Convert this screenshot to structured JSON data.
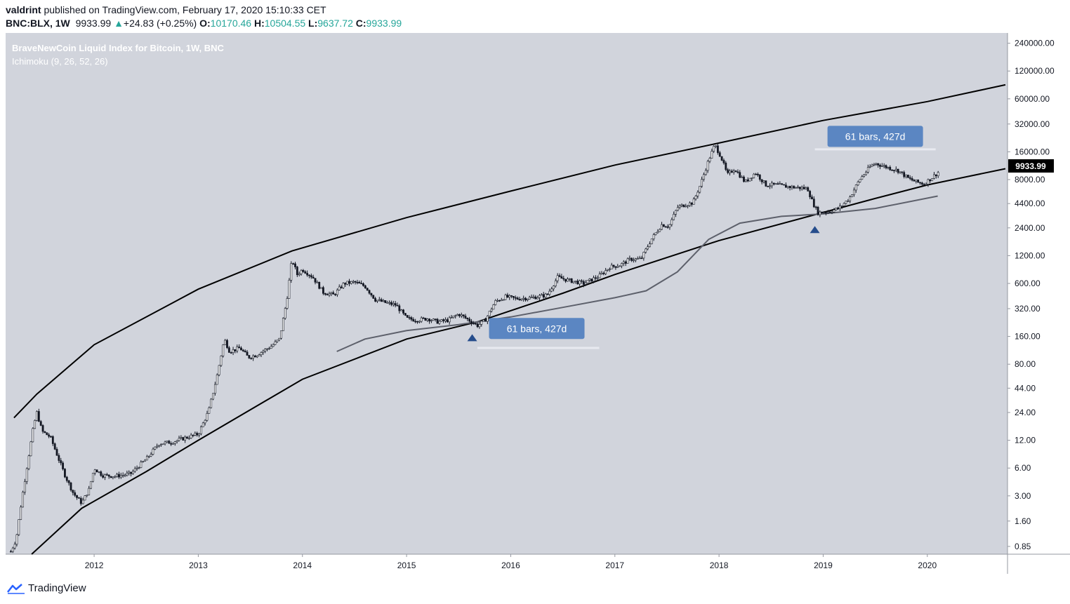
{
  "header": {
    "author": "valdrint",
    "published_text": "published on TradingView.com, February 17, 2020 15:10:33 CET",
    "symbol": "BNC:BLX, 1W",
    "last": "9933.99",
    "change_arrow": "▲",
    "change": "+24.83 (+0.25%)",
    "o_label": "O:",
    "o_value": "10170.46",
    "h_label": "H:",
    "h_value": "10504.55",
    "l_label": "L:",
    "l_value": "9637.72",
    "c_label": "C:",
    "c_value": "9933.99"
  },
  "footer": {
    "brand": "TradingView"
  },
  "chart_data": {
    "type": "candlestick",
    "title": "BraveNewCoin Liquid Index for Bitcoin, 1W, BNC",
    "subtitle": "Ichimoku (9, 26, 52, 26)",
    "y_scale": "log",
    "ylim": [
      0.7,
      310000
    ],
    "xlim": [
      2011.15,
      2020.77
    ],
    "y_ticks": [
      "240000.00",
      "120000.00",
      "60000.00",
      "32000.00",
      "16000.00",
      "8000.00",
      "4400.00",
      "2400.00",
      "1200.00",
      "600.00",
      "320.00",
      "160.00",
      "80.00",
      "44.00",
      "24.00",
      "12.00",
      "6.00",
      "3.00",
      "1.60",
      "0.85"
    ],
    "x_ticks": [
      "2012",
      "2013",
      "2014",
      "2015",
      "2016",
      "2017",
      "2018",
      "2019",
      "2020"
    ],
    "last_price_label": "9933.99",
    "colors": {
      "background": "#d1d4dc",
      "candle": "#131722",
      "baseline": "#5d606b",
      "label_bg": "#5b86c2",
      "marker": "#264d8c",
      "price_tag": "#000000"
    },
    "price_path": [
      {
        "t": 2011.2,
        "v": 0.75
      },
      {
        "t": 2011.25,
        "v": 1.0
      },
      {
        "t": 2011.31,
        "v": 3.0
      },
      {
        "t": 2011.37,
        "v": 8.0
      },
      {
        "t": 2011.42,
        "v": 17.5
      },
      {
        "t": 2011.45,
        "v": 24.0
      },
      {
        "t": 2011.5,
        "v": 15.0
      },
      {
        "t": 2011.58,
        "v": 13.0
      },
      {
        "t": 2011.65,
        "v": 8.0
      },
      {
        "t": 2011.72,
        "v": 5.0
      },
      {
        "t": 2011.8,
        "v": 3.2
      },
      {
        "t": 2011.88,
        "v": 2.5
      },
      {
        "t": 2011.95,
        "v": 3.5
      },
      {
        "t": 2012.0,
        "v": 6.0
      },
      {
        "t": 2012.08,
        "v": 5.0
      },
      {
        "t": 2012.2,
        "v": 4.9
      },
      {
        "t": 2012.35,
        "v": 5.2
      },
      {
        "t": 2012.5,
        "v": 7.5
      },
      {
        "t": 2012.62,
        "v": 11.0
      },
      {
        "t": 2012.75,
        "v": 11.5
      },
      {
        "t": 2012.9,
        "v": 13.0
      },
      {
        "t": 2013.0,
        "v": 14.0
      },
      {
        "t": 2013.1,
        "v": 25.0
      },
      {
        "t": 2013.18,
        "v": 60.0
      },
      {
        "t": 2013.25,
        "v": 150.0
      },
      {
        "t": 2013.3,
        "v": 110.0
      },
      {
        "t": 2013.4,
        "v": 120.0
      },
      {
        "t": 2013.48,
        "v": 95.0
      },
      {
        "t": 2013.55,
        "v": 100.0
      },
      {
        "t": 2013.7,
        "v": 125.0
      },
      {
        "t": 2013.78,
        "v": 150.0
      },
      {
        "t": 2013.85,
        "v": 400.0
      },
      {
        "t": 2013.9,
        "v": 1100.0
      },
      {
        "t": 2013.95,
        "v": 750.0
      },
      {
        "t": 2014.0,
        "v": 850.0
      },
      {
        "t": 2014.1,
        "v": 700.0
      },
      {
        "t": 2014.2,
        "v": 480.0
      },
      {
        "t": 2014.3,
        "v": 450.0
      },
      {
        "t": 2014.4,
        "v": 600.0
      },
      {
        "t": 2014.5,
        "v": 620.0
      },
      {
        "t": 2014.6,
        "v": 560.0
      },
      {
        "t": 2014.7,
        "v": 400.0
      },
      {
        "t": 2014.8,
        "v": 370.0
      },
      {
        "t": 2014.9,
        "v": 350.0
      },
      {
        "t": 2015.0,
        "v": 250.0
      },
      {
        "t": 2015.1,
        "v": 240.0
      },
      {
        "t": 2015.2,
        "v": 250.0
      },
      {
        "t": 2015.3,
        "v": 230.0
      },
      {
        "t": 2015.4,
        "v": 240.0
      },
      {
        "t": 2015.5,
        "v": 280.0
      },
      {
        "t": 2015.6,
        "v": 240.0
      },
      {
        "t": 2015.68,
        "v": 210.0
      },
      {
        "t": 2015.75,
        "v": 235.0
      },
      {
        "t": 2015.85,
        "v": 380.0
      },
      {
        "t": 2015.95,
        "v": 430.0
      },
      {
        "t": 2016.05,
        "v": 410.0
      },
      {
        "t": 2016.2,
        "v": 420.0
      },
      {
        "t": 2016.35,
        "v": 450.0
      },
      {
        "t": 2016.45,
        "v": 700.0
      },
      {
        "t": 2016.55,
        "v": 650.0
      },
      {
        "t": 2016.7,
        "v": 600.0
      },
      {
        "t": 2016.85,
        "v": 720.0
      },
      {
        "t": 2016.95,
        "v": 900.0
      },
      {
        "t": 2017.05,
        "v": 950.0
      },
      {
        "t": 2017.15,
        "v": 1100.0
      },
      {
        "t": 2017.25,
        "v": 1100.0
      },
      {
        "t": 2017.35,
        "v": 1800.0
      },
      {
        "t": 2017.45,
        "v": 2600.0
      },
      {
        "t": 2017.52,
        "v": 2500.0
      },
      {
        "t": 2017.6,
        "v": 4000.0
      },
      {
        "t": 2017.68,
        "v": 4300.0
      },
      {
        "t": 2017.75,
        "v": 4500.0
      },
      {
        "t": 2017.82,
        "v": 7000.0
      },
      {
        "t": 2017.9,
        "v": 13000.0
      },
      {
        "t": 2017.96,
        "v": 19000.0
      },
      {
        "t": 2018.02,
        "v": 14000.0
      },
      {
        "t": 2018.08,
        "v": 9000.0
      },
      {
        "t": 2018.15,
        "v": 10500.0
      },
      {
        "t": 2018.25,
        "v": 7500.0
      },
      {
        "t": 2018.35,
        "v": 9500.0
      },
      {
        "t": 2018.45,
        "v": 7000.0
      },
      {
        "t": 2018.55,
        "v": 7000.0
      },
      {
        "t": 2018.62,
        "v": 6800.0
      },
      {
        "t": 2018.72,
        "v": 6600.0
      },
      {
        "t": 2018.85,
        "v": 6400.0
      },
      {
        "t": 2018.9,
        "v": 4500.0
      },
      {
        "t": 2018.95,
        "v": 3500.0
      },
      {
        "t": 2019.05,
        "v": 3600.0
      },
      {
        "t": 2019.15,
        "v": 3900.0
      },
      {
        "t": 2019.25,
        "v": 5000.0
      },
      {
        "t": 2019.35,
        "v": 8000.0
      },
      {
        "t": 2019.45,
        "v": 11000.0
      },
      {
        "t": 2019.5,
        "v": 12000.0
      },
      {
        "t": 2019.6,
        "v": 11000.0
      },
      {
        "t": 2019.72,
        "v": 10000.0
      },
      {
        "t": 2019.82,
        "v": 8200.0
      },
      {
        "t": 2019.9,
        "v": 7500.0
      },
      {
        "t": 2019.97,
        "v": 7200.0
      },
      {
        "t": 2020.05,
        "v": 8500.0
      },
      {
        "t": 2020.12,
        "v": 9933.99
      }
    ],
    "baseline_path": [
      {
        "t": 2014.33,
        "v": 110
      },
      {
        "t": 2014.6,
        "v": 150
      },
      {
        "t": 2015.0,
        "v": 185
      },
      {
        "t": 2015.5,
        "v": 215
      },
      {
        "t": 2016.0,
        "v": 260
      },
      {
        "t": 2016.5,
        "v": 330
      },
      {
        "t": 2017.0,
        "v": 420
      },
      {
        "t": 2017.3,
        "v": 500
      },
      {
        "t": 2017.6,
        "v": 800
      },
      {
        "t": 2017.9,
        "v": 1800
      },
      {
        "t": 2018.2,
        "v": 2700
      },
      {
        "t": 2018.6,
        "v": 3200
      },
      {
        "t": 2019.0,
        "v": 3400
      },
      {
        "t": 2019.5,
        "v": 3900
      },
      {
        "t": 2020.1,
        "v": 5300
      }
    ],
    "resistance_curve": [
      {
        "t": 2011.23,
        "v": 21
      },
      {
        "t": 2011.45,
        "v": 38
      },
      {
        "t": 2012.0,
        "v": 130
      },
      {
        "t": 2013.0,
        "v": 520
      },
      {
        "t": 2013.9,
        "v": 1350
      },
      {
        "t": 2015.0,
        "v": 3100
      },
      {
        "t": 2016.0,
        "v": 6000
      },
      {
        "t": 2017.0,
        "v": 11500
      },
      {
        "t": 2017.96,
        "v": 19500
      },
      {
        "t": 2019.0,
        "v": 35000
      },
      {
        "t": 2020.0,
        "v": 56000
      },
      {
        "t": 2020.75,
        "v": 85000
      }
    ],
    "support_curve": [
      {
        "t": 2011.4,
        "v": 0.7
      },
      {
        "t": 2011.88,
        "v": 2.2
      },
      {
        "t": 2012.5,
        "v": 5.5
      },
      {
        "t": 2013.0,
        "v": 12
      },
      {
        "t": 2014.0,
        "v": 55
      },
      {
        "t": 2015.0,
        "v": 150
      },
      {
        "t": 2015.68,
        "v": 230
      },
      {
        "t": 2016.5,
        "v": 470
      },
      {
        "t": 2017.0,
        "v": 750
      },
      {
        "t": 2018.0,
        "v": 1750
      },
      {
        "t": 2018.95,
        "v": 3400
      },
      {
        "t": 2019.5,
        "v": 5000
      },
      {
        "t": 2020.0,
        "v": 7000
      },
      {
        "t": 2020.75,
        "v": 10500
      }
    ],
    "annotations": [
      {
        "text": "61 bars, 427d",
        "t": 2016.25,
        "v": 195,
        "marker_t": 2015.63,
        "marker_v": 155,
        "range_t": [
          2015.68,
          2016.85
        ],
        "range_v": 120
      },
      {
        "text": "61 bars, 427d",
        "t": 2019.5,
        "v": 23500,
        "marker_t": 2018.92,
        "marker_v": 2300,
        "range_t": [
          2018.92,
          2020.08
        ],
        "range_v": 17000
      }
    ]
  }
}
